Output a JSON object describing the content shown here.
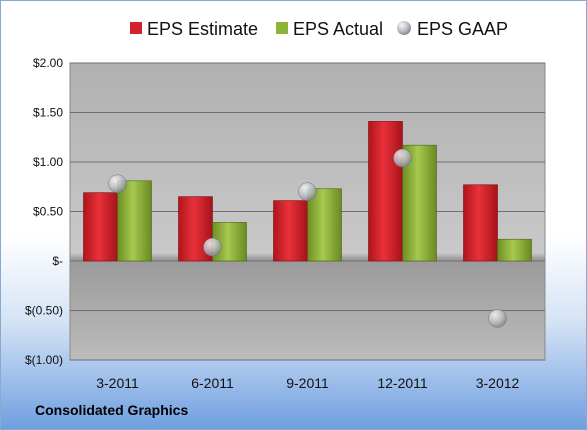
{
  "company": "Consolidated Graphics",
  "chart_data": {
    "type": "bar",
    "categories": [
      "3-2011",
      "6-2011",
      "9-2011",
      "12-2011",
      "3-2012"
    ],
    "series": [
      {
        "name": "EPS Estimate",
        "kind": "bar",
        "color": "#d4202a",
        "values": [
          0.69,
          0.65,
          0.61,
          1.41,
          0.77
        ]
      },
      {
        "name": "EPS Actual",
        "kind": "bar",
        "color": "#8fb43a",
        "values": [
          0.81,
          0.39,
          0.73,
          1.17,
          0.22
        ]
      },
      {
        "name": "EPS GAAP",
        "kind": "point",
        "color": "#b9bcc2",
        "values": [
          0.78,
          0.14,
          0.7,
          1.04,
          -0.58
        ]
      }
    ],
    "yticks": [
      "$2.00",
      "$1.50",
      "$1.00",
      "$0.50",
      "$-",
      "$(0.50)",
      "$(1.00)"
    ],
    "ylim": [
      -1.0,
      2.0
    ],
    "grid": true,
    "legend_position": "top"
  }
}
